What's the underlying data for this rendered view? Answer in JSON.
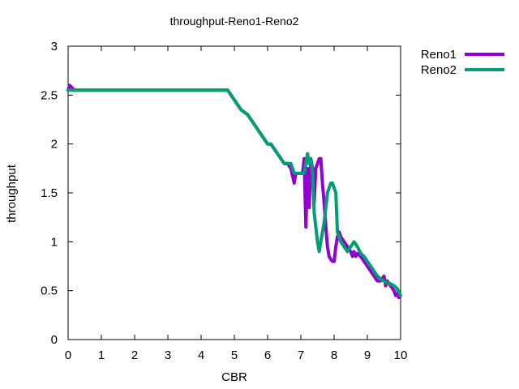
{
  "chart_data": {
    "type": "line",
    "title": "throughput-Reno1-Reno2",
    "xlabel": "CBR",
    "ylabel": "throughput",
    "xlim": [
      0,
      10
    ],
    "ylim": [
      0,
      3
    ],
    "xticks": [
      0,
      1,
      2,
      3,
      4,
      5,
      6,
      7,
      8,
      9,
      10
    ],
    "yticks": [
      0,
      0.5,
      1,
      1.5,
      2,
      2.5,
      3
    ],
    "xtick_labels": [
      "0",
      "1",
      "2",
      "3",
      "4",
      "5",
      "6",
      "7",
      "8",
      "9",
      "10"
    ],
    "ytick_labels": [
      "0",
      "0.5",
      "1",
      "1.5",
      "2",
      "2.5",
      "3"
    ],
    "grid": false,
    "legend_position": "outside top-right",
    "series": [
      {
        "name": "Reno1",
        "color": "#9400d3",
        "x": [
          0,
          0.05,
          0.1,
          0.2,
          1,
          2,
          3,
          4,
          4.8,
          5.0,
          5.2,
          5.4,
          5.5,
          5.7,
          5.9,
          6.0,
          6.1,
          6.3,
          6.5,
          6.6,
          6.7,
          6.8,
          6.85,
          6.9,
          7.0,
          7.05,
          7.1,
          7.15,
          7.2,
          7.25,
          7.3,
          7.35,
          7.4,
          7.45,
          7.5,
          7.55,
          7.6,
          7.65,
          7.7,
          7.75,
          7.8,
          7.85,
          7.9,
          7.95,
          8.0,
          8.05,
          8.1,
          8.15,
          8.2,
          8.3,
          8.4,
          8.5,
          8.55,
          8.6,
          8.65,
          8.7,
          8.8,
          8.9,
          9.0,
          9.1,
          9.2,
          9.3,
          9.4,
          9.5,
          9.55,
          9.6,
          9.7,
          9.8,
          9.85,
          9.9,
          9.95,
          10
        ],
        "y": [
          2.55,
          2.6,
          2.58,
          2.55,
          2.55,
          2.55,
          2.55,
          2.55,
          2.55,
          2.45,
          2.35,
          2.3,
          2.25,
          2.15,
          2.05,
          2.0,
          2.0,
          1.9,
          1.8,
          1.8,
          1.75,
          1.6,
          1.7,
          1.7,
          1.7,
          1.7,
          1.85,
          1.15,
          1.75,
          1.35,
          1.85,
          1.75,
          1.4,
          1.75,
          1.8,
          1.85,
          1.85,
          1.6,
          1.4,
          1.15,
          0.95,
          0.85,
          0.82,
          0.8,
          0.8,
          0.95,
          1.05,
          1.1,
          1.05,
          1.0,
          0.95,
          0.9,
          0.85,
          0.9,
          0.85,
          0.88,
          0.85,
          0.8,
          0.75,
          0.7,
          0.65,
          0.6,
          0.6,
          0.65,
          0.55,
          0.6,
          0.55,
          0.5,
          0.45,
          0.47,
          0.43,
          0.45
        ]
      },
      {
        "name": "Reno2",
        "color": "#009e73",
        "x": [
          0,
          0.05,
          0.1,
          1,
          2,
          3,
          4,
          4.8,
          5.0,
          5.2,
          5.4,
          5.5,
          5.7,
          5.9,
          6.0,
          6.1,
          6.3,
          6.5,
          6.6,
          6.7,
          6.8,
          7.0,
          7.1,
          7.15,
          7.2,
          7.25,
          7.3,
          7.35,
          7.4,
          7.5,
          7.55,
          7.6,
          7.7,
          7.8,
          7.9,
          7.95,
          8.0,
          8.05,
          8.1,
          8.2,
          8.3,
          8.4,
          8.5,
          8.6,
          8.7,
          8.8,
          8.9,
          9.0,
          9.1,
          9.2,
          9.3,
          9.4,
          9.5,
          9.6,
          9.7,
          9.8,
          9.9,
          10
        ],
        "y": [
          2.55,
          2.55,
          2.55,
          2.55,
          2.55,
          2.55,
          2.55,
          2.55,
          2.45,
          2.35,
          2.3,
          2.25,
          2.15,
          2.05,
          2.0,
          2.0,
          1.9,
          1.8,
          1.8,
          1.8,
          1.7,
          1.7,
          1.7,
          1.8,
          1.9,
          1.8,
          1.85,
          1.7,
          1.3,
          1.0,
          0.9,
          1.0,
          1.2,
          1.5,
          1.6,
          1.6,
          1.55,
          1.5,
          1.1,
          1.0,
          0.95,
          0.9,
          0.95,
          1.0,
          0.95,
          0.88,
          0.85,
          0.8,
          0.75,
          0.7,
          0.65,
          0.62,
          0.6,
          0.58,
          0.57,
          0.55,
          0.52,
          0.45
        ]
      }
    ]
  }
}
